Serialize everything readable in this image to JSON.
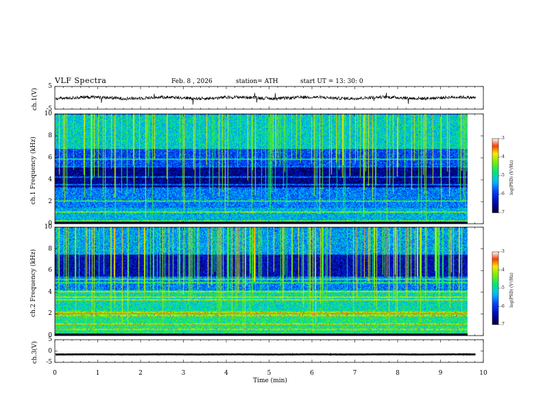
{
  "header": {
    "title": "VLF Spectra",
    "date": "Feb. 8 , 2026",
    "station": "station= ATH",
    "start": "start UT = 13: 30: 0"
  },
  "colors": {
    "background": "#ffffff",
    "axis": "#000000",
    "waveform": "#000000"
  },
  "chart_data": [
    {
      "type": "line",
      "name": "ch1-waveform",
      "ylabel": "ch.1(V)",
      "ylim": [
        -5,
        5
      ],
      "yticks": [
        "5",
        "-5"
      ],
      "xlim": [
        0,
        10
      ],
      "description_values": {
        "baseline": 0,
        "noise_amplitude": 1
      }
    },
    {
      "type": "heatmap",
      "name": "ch1-spectrogram",
      "ylabel": "ch.1 Frequency (kHz)",
      "ylim": [
        0,
        10
      ],
      "yticks": [
        "0",
        "2",
        "4",
        "6",
        "8",
        "10"
      ],
      "xlim": [
        0,
        10
      ],
      "colorbar": {
        "label": "log(PSD) (V²/Hz)",
        "ticks": [
          "-3",
          "-4",
          "-5",
          "-6",
          "-7"
        ],
        "range": [
          -7,
          -3
        ]
      },
      "bands": [
        {
          "f_low": 0,
          "f_high": 1.5,
          "level": -5.3
        },
        {
          "f_low": 1.5,
          "f_high": 3.2,
          "level": -5.6
        },
        {
          "f_low": 3.2,
          "f_high": 5.3,
          "level": -6.6
        },
        {
          "f_low": 5.3,
          "f_high": 7.0,
          "level": -5.9
        },
        {
          "f_low": 7.0,
          "f_high": 10,
          "level": -5.1
        }
      ],
      "lines_khz": [
        0.3,
        1.1,
        2.1,
        3.3,
        3.6,
        4.3,
        5.2,
        5.9,
        6.9
      ]
    },
    {
      "type": "heatmap",
      "name": "ch2-spectrogram",
      "ylabel": "ch.2 Frequency (kHz)",
      "ylim": [
        0,
        10
      ],
      "yticks": [
        "0",
        "2",
        "4",
        "6",
        "8",
        "10"
      ],
      "xlim": [
        0,
        10
      ],
      "colorbar": {
        "label": "log(PSD) (V²/Hz)",
        "ticks": [
          "-3",
          "-4",
          "-5",
          "-6",
          "-7"
        ],
        "range": [
          -7,
          -3
        ]
      },
      "bands": [
        {
          "f_low": 0,
          "f_high": 2.4,
          "level": -4.8
        },
        {
          "f_low": 2.4,
          "f_high": 4.2,
          "level": -5.0
        },
        {
          "f_low": 4.2,
          "f_high": 5.5,
          "level": -5.6
        },
        {
          "f_low": 5.5,
          "f_high": 7.5,
          "level": -6.4
        },
        {
          "f_low": 7.5,
          "f_high": 10,
          "level": -5.4
        }
      ],
      "lines_khz": [
        0.6,
        1.1,
        1.9,
        2.2,
        3.3,
        3.6,
        4.1,
        4.9,
        5.2
      ]
    },
    {
      "type": "line",
      "name": "ch3-waveform",
      "ylabel": "ch.3(V)",
      "ylim": [
        -5,
        5
      ],
      "yticks": [
        "5",
        "0",
        "-5"
      ],
      "xlim": [
        0,
        10
      ],
      "description_values": {
        "baseline": -1.5,
        "noise_amplitude": 0.1
      }
    }
  ],
  "xaxis": {
    "label": "Time (min)",
    "ticks": [
      "0",
      "1",
      "2",
      "3",
      "4",
      "5",
      "6",
      "7",
      "8",
      "9",
      "10"
    ]
  }
}
